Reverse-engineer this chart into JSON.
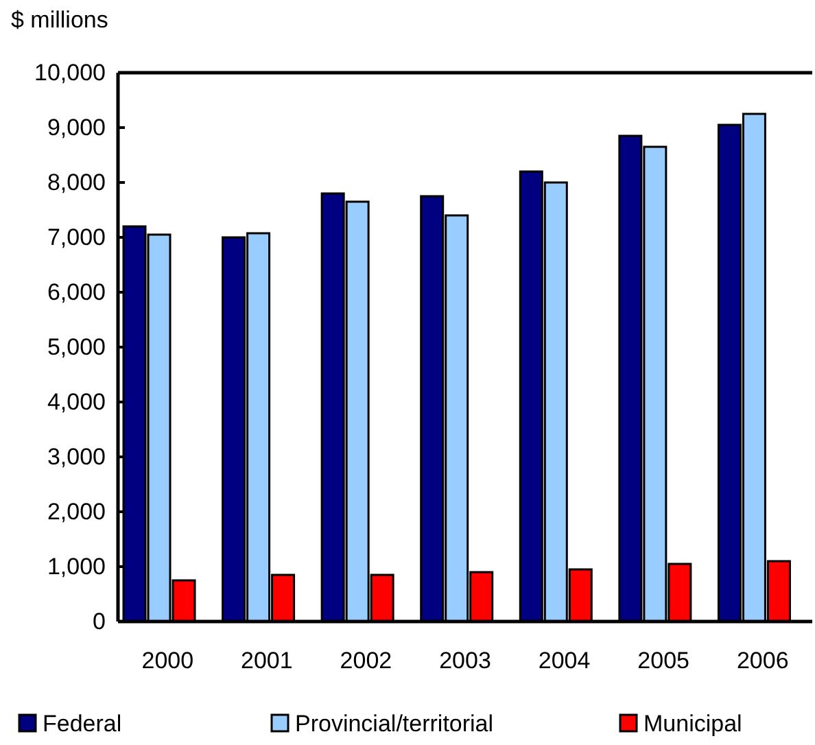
{
  "chart_data": {
    "type": "bar",
    "ylabel": "$ millions",
    "categories": [
      "2000",
      "2001",
      "2002",
      "2003",
      "2004",
      "2005",
      "2006"
    ],
    "series": [
      {
        "name": "Federal",
        "color": "#000080",
        "values": [
          7200,
          7000,
          7800,
          7750,
          8200,
          8850,
          9050
        ]
      },
      {
        "name": "Provincial/territorial",
        "color": "#99ccff",
        "values": [
          7050,
          7075,
          7650,
          7400,
          8000,
          8650,
          9250
        ]
      },
      {
        "name": "Municipal",
        "color": "#ff0000",
        "values": [
          750,
          850,
          850,
          900,
          950,
          1050,
          1100
        ]
      }
    ],
    "ylim": [
      0,
      10000
    ],
    "yticks": [
      {
        "value": 0,
        "label": "0"
      },
      {
        "value": 1000,
        "label": "1,000"
      },
      {
        "value": 2000,
        "label": "2,000"
      },
      {
        "value": 3000,
        "label": "3,000"
      },
      {
        "value": 4000,
        "label": "4,000"
      },
      {
        "value": 5000,
        "label": "5,000"
      },
      {
        "value": 6000,
        "label": "6,000"
      },
      {
        "value": 7000,
        "label": "7,000"
      },
      {
        "value": 8000,
        "label": "8,000"
      },
      {
        "value": 9000,
        "label": "9,000"
      },
      {
        "value": 10000,
        "label": "10,000"
      }
    ],
    "grid": false,
    "legend": "bottom"
  }
}
